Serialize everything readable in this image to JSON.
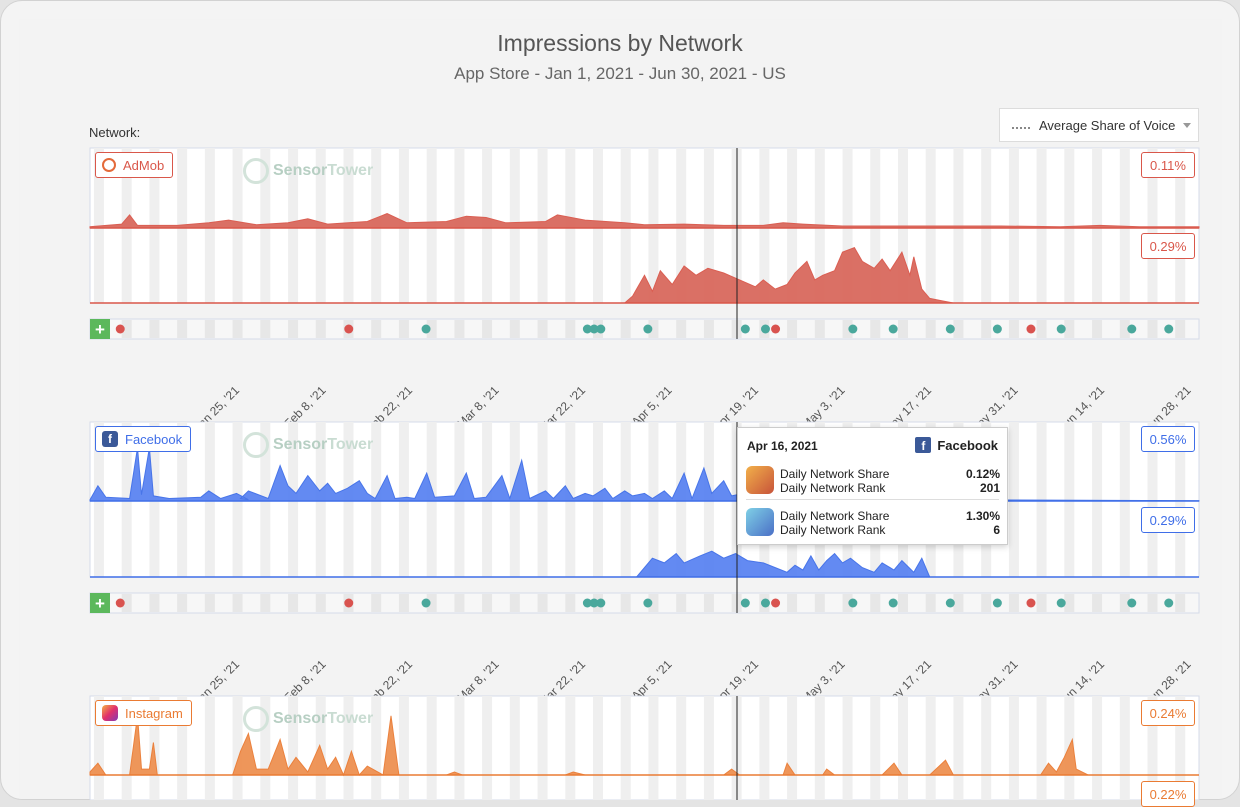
{
  "title": "Impressions by Network",
  "subtitle": "App Store - Jan 1, 2021 - Jun 30, 2021 - US",
  "network_label": "Network:",
  "share_selector": "Average Share of Voice",
  "watermark": {
    "part1": "Sensor",
    "part2": "Tower"
  },
  "tooltip": {
    "date": "Apr 16, 2021",
    "network": "Facebook",
    "rows": [
      {
        "share_label": "Daily Network Share",
        "share_value": "0.12%",
        "rank_label": "Daily Network Rank",
        "rank_value": "201"
      },
      {
        "share_label": "Daily Network Share",
        "share_value": "1.30%",
        "rank_label": "Daily Network Rank",
        "rank_value": "6"
      }
    ]
  },
  "chart_data": {
    "type": "area",
    "x_ticks": [
      "Jan 25, '21",
      "Feb 8, '21",
      "Feb 22, '21",
      "Mar 8, '21",
      "Mar 22, '21",
      "Apr 5, '21",
      "Apr 19, '21",
      "May 3, '21",
      "May 17, '21",
      "May 31, '21",
      "Jun 14, '21",
      "Jun 28, '21"
    ],
    "networks": [
      {
        "name": "AdMob",
        "color": "#d9574a",
        "fill": "#d9695d",
        "icon": "admob-icon",
        "series": [
          {
            "max_label": "0.11%",
            "ymax": 0.11,
            "points": [
              [
                0,
                0.002
              ],
              [
                8,
                0.006
              ],
              [
                10,
                0.02
              ],
              [
                12,
                0.004
              ],
              [
                22,
                0.004
              ],
              [
                30,
                0.008
              ],
              [
                35,
                0.012
              ],
              [
                42,
                0.005
              ],
              [
                50,
                0.008
              ],
              [
                55,
                0.014
              ],
              [
                60,
                0.006
              ],
              [
                70,
                0.01
              ],
              [
                75,
                0.022
              ],
              [
                80,
                0.008
              ],
              [
                90,
                0.01
              ],
              [
                95,
                0.018
              ],
              [
                100,
                0.016
              ],
              [
                105,
                0.008
              ],
              [
                115,
                0.01
              ],
              [
                118,
                0.02
              ],
              [
                125,
                0.012
              ],
              [
                135,
                0.008
              ],
              [
                140,
                0.005
              ],
              [
                150,
                0.006
              ],
              [
                160,
                0.004
              ],
              [
                170,
                0.004
              ],
              [
                175,
                0.008
              ],
              [
                180,
                0.006
              ],
              [
                190,
                0.003
              ],
              [
                200,
                0.003
              ],
              [
                215,
                0.003
              ],
              [
                230,
                0.003
              ],
              [
                245,
                0.002
              ],
              [
                255,
                0.004
              ],
              [
                265,
                0.002
              ],
              [
                275,
                0.002
              ],
              [
                280,
                0.002
              ]
            ]
          },
          {
            "max_label": "0.29%",
            "ymax": 0.29,
            "points": [
              [
                0,
                0
              ],
              [
                135,
                0
              ],
              [
                137,
                0.03
              ],
              [
                140,
                0.12
              ],
              [
                142,
                0.05
              ],
              [
                144,
                0.14
              ],
              [
                147,
                0.08
              ],
              [
                150,
                0.16
              ],
              [
                153,
                0.12
              ],
              [
                156,
                0.15
              ],
              [
                160,
                0.13
              ],
              [
                164,
                0.1
              ],
              [
                168,
                0.07
              ],
              [
                170,
                0.1
              ],
              [
                173,
                0.06
              ],
              [
                176,
                0.08
              ],
              [
                178,
                0.13
              ],
              [
                181,
                0.18
              ],
              [
                183,
                0.1
              ],
              [
                185,
                0.12
              ],
              [
                188,
                0.14
              ],
              [
                190,
                0.22
              ],
              [
                193,
                0.24
              ],
              [
                195,
                0.18
              ],
              [
                198,
                0.15
              ],
              [
                200,
                0.19
              ],
              [
                202,
                0.14
              ],
              [
                205,
                0.22
              ],
              [
                207,
                0.12
              ],
              [
                208,
                0.2
              ],
              [
                210,
                0.06
              ],
              [
                212,
                0.02
              ],
              [
                215,
                0.01
              ],
              [
                218,
                0
              ],
              [
                280,
                0
              ]
            ]
          }
        ]
      },
      {
        "name": "Facebook",
        "color": "#3f6ee8",
        "fill": "#5b84f2",
        "icon": "facebook-icon",
        "series": [
          {
            "max_label": "0.56%",
            "ymax": 0.56,
            "points": [
              [
                0,
                0.01
              ],
              [
                2,
                0.12
              ],
              [
                4,
                0.03
              ],
              [
                10,
                0.02
              ],
              [
                12,
                0.42
              ],
              [
                13,
                0.05
              ],
              [
                15,
                0.42
              ],
              [
                16,
                0.04
              ],
              [
                20,
                0.02
              ],
              [
                28,
                0.03
              ],
              [
                30,
                0.08
              ],
              [
                33,
                0.02
              ],
              [
                37,
                0.06
              ],
              [
                40,
                0.01
              ],
              [
                38,
                0.02
              ],
              [
                40,
                0.08
              ],
              [
                45,
                0.02
              ],
              [
                48,
                0.28
              ],
              [
                50,
                0.12
              ],
              [
                52,
                0.06
              ],
              [
                55,
                0.2
              ],
              [
                58,
                0.08
              ],
              [
                60,
                0.14
              ],
              [
                62,
                0.06
              ],
              [
                65,
                0.1
              ],
              [
                68,
                0.16
              ],
              [
                70,
                0.06
              ],
              [
                72,
                0.02
              ],
              [
                75,
                0.2
              ],
              [
                77,
                0.02
              ],
              [
                80,
                0.03
              ],
              [
                82,
                0.02
              ],
              [
                85,
                0.22
              ],
              [
                87,
                0.03
              ],
              [
                92,
                0.04
              ],
              [
                95,
                0.22
              ],
              [
                97,
                0.02
              ],
              [
                100,
                0.03
              ],
              [
                104,
                0.2
              ],
              [
                106,
                0.02
              ],
              [
                109,
                0.32
              ],
              [
                111,
                0.02
              ],
              [
                115,
                0.08
              ],
              [
                117,
                0.02
              ],
              [
                120,
                0.12
              ],
              [
                122,
                0.02
              ],
              [
                125,
                0.06
              ],
              [
                127,
                0.04
              ],
              [
                130,
                0.1
              ],
              [
                132,
                0.02
              ],
              [
                135,
                0.08
              ],
              [
                137,
                0.04
              ],
              [
                140,
                0.06
              ],
              [
                142,
                0.02
              ],
              [
                145,
                0.08
              ],
              [
                147,
                0.02
              ],
              [
                150,
                0.22
              ],
              [
                152,
                0.02
              ],
              [
                155,
                0.26
              ],
              [
                157,
                0.06
              ],
              [
                160,
                0.16
              ],
              [
                162,
                0.04
              ],
              [
                165,
                0.06
              ],
              [
                167,
                0.02
              ],
              [
                175,
                0.01
              ],
              [
                190,
                0.01
              ],
              [
                200,
                0.02
              ],
              [
                215,
                0.01
              ],
              [
                230,
                0.008
              ],
              [
                250,
                0.006
              ],
              [
                270,
                0.004
              ],
              [
                280,
                0.002
              ]
            ]
          },
          {
            "max_label": "0.29%",
            "ymax": 0.29,
            "points": [
              [
                0,
                0
              ],
              [
                138,
                0
              ],
              [
                140,
                0.04
              ],
              [
                142,
                0.08
              ],
              [
                145,
                0.06
              ],
              [
                148,
                0.1
              ],
              [
                150,
                0.06
              ],
              [
                154,
                0.09
              ],
              [
                157,
                0.11
              ],
              [
                160,
                0.08
              ],
              [
                163,
                0.1
              ],
              [
                166,
                0.07
              ],
              [
                170,
                0.06
              ],
              [
                173,
                0.04
              ],
              [
                176,
                0.02
              ],
              [
                178,
                0.05
              ],
              [
                180,
                0.03
              ],
              [
                182,
                0.09
              ],
              [
                184,
                0.03
              ],
              [
                186,
                0.07
              ],
              [
                188,
                0.1
              ],
              [
                190,
                0.06
              ],
              [
                192,
                0.08
              ],
              [
                195,
                0.04
              ],
              [
                198,
                0.02
              ],
              [
                200,
                0.06
              ],
              [
                203,
                0.03
              ],
              [
                205,
                0.07
              ],
              [
                208,
                0.02
              ],
              [
                210,
                0.08
              ],
              [
                212,
                0
              ],
              [
                280,
                0
              ]
            ]
          }
        ]
      },
      {
        "name": "Instagram",
        "color": "#ea7b33",
        "fill": "#ee9152",
        "icon": "instagram-icon",
        "series": [
          {
            "max_label": "0.24%",
            "ymax": 0.24,
            "points": [
              [
                0,
                0.01
              ],
              [
                2,
                0.04
              ],
              [
                4,
                0.0
              ],
              [
                10,
                0.0
              ],
              [
                12,
                0.2
              ],
              [
                13,
                0.02
              ],
              [
                15,
                0.02
              ],
              [
                16,
                0.11
              ],
              [
                17,
                0.0
              ],
              [
                36,
                0.0
              ],
              [
                38,
                0.08
              ],
              [
                40,
                0.14
              ],
              [
                42,
                0.02
              ],
              [
                45,
                0.02
              ],
              [
                48,
                0.12
              ],
              [
                50,
                0.02
              ],
              [
                52,
                0.06
              ],
              [
                55,
                0.01
              ],
              [
                58,
                0.1
              ],
              [
                60,
                0.02
              ],
              [
                62,
                0.06
              ],
              [
                64,
                0.0
              ],
              [
                66,
                0.08
              ],
              [
                68,
                0.0
              ],
              [
                70,
                0.03
              ],
              [
                74,
                0.0
              ],
              [
                76,
                0.2
              ],
              [
                78,
                0.0
              ],
              [
                90,
                0.0
              ],
              [
                92,
                0.01
              ],
              [
                94,
                0.0
              ],
              [
                120,
                0.0
              ],
              [
                122,
                0.01
              ],
              [
                125,
                0.0
              ],
              [
                160,
                0.0
              ],
              [
                162,
                0.02
              ],
              [
                164,
                0.0
              ],
              [
                175,
                0.0
              ],
              [
                176,
                0.04
              ],
              [
                178,
                0.0
              ],
              [
                185,
                0.0
              ],
              [
                186,
                0.02
              ],
              [
                188,
                0.0
              ],
              [
                200,
                0.0
              ],
              [
                203,
                0.04
              ],
              [
                205,
                0.0
              ],
              [
                212,
                0.0
              ],
              [
                216,
                0.05
              ],
              [
                218,
                0.0
              ],
              [
                240,
                0.0
              ],
              [
                242,
                0.04
              ],
              [
                244,
                0.01
              ],
              [
                246,
                0.06
              ],
              [
                248,
                0.12
              ],
              [
                249,
                0.02
              ],
              [
                252,
                0.0
              ],
              [
                280,
                0.0
              ]
            ]
          },
          {
            "max_label": "0.22%",
            "ymax": 0.22,
            "points": []
          }
        ]
      }
    ]
  }
}
